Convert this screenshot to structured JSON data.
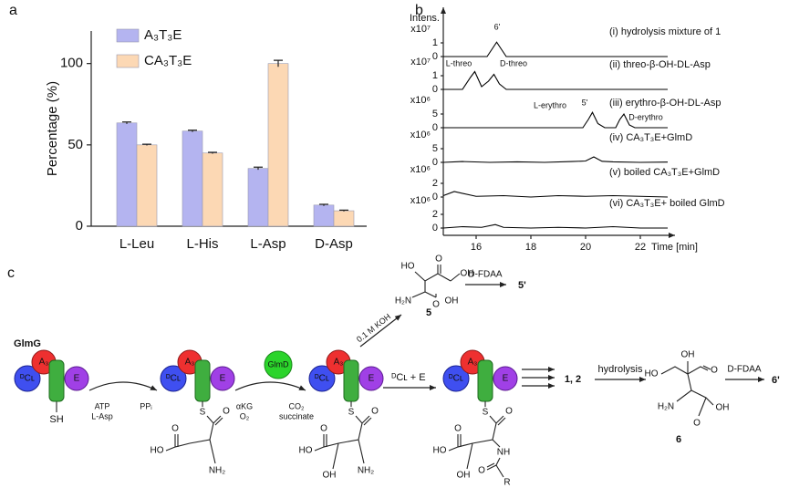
{
  "chart_data": [
    {
      "type": "bar",
      "panel_label": "a",
      "ylabel": "Percentage (%)",
      "categories": [
        "L-Leu",
        "L-His",
        "L-Asp",
        "D-Asp"
      ],
      "series": [
        {
          "name": "A₃T₃E",
          "color": "#b4b4f0",
          "values": [
            63.5,
            58.5,
            35.5,
            13
          ],
          "errors": [
            0.6,
            0.5,
            0.8,
            0.5
          ]
        },
        {
          "name": "CA₃T₃E",
          "color": "#fcd8b4",
          "values": [
            50,
            45,
            100,
            9.5
          ],
          "errors": [
            0.4,
            0.4,
            2,
            0.4
          ]
        }
      ],
      "ylim": [
        0,
        120
      ],
      "yticks": [
        0,
        50,
        100
      ]
    },
    {
      "type": "line",
      "panel_label": "b",
      "ylabel": "Intens.",
      "xlabel": "Time [min]",
      "xlim": [
        14.8,
        23
      ],
      "xticks": [
        16,
        18,
        20,
        22
      ],
      "series": [
        {
          "name": "(i) hydrolysis mixture of 1",
          "scale": "x10⁷",
          "color": "#000000",
          "ylim": [
            0,
            2
          ],
          "yticks": [
            0,
            1
          ],
          "peak_labels": [
            "6'"
          ],
          "x": [
            14.8,
            16.4,
            16.6,
            16.75,
            16.9,
            17.1,
            23
          ],
          "values": [
            0,
            0,
            0.6,
            1.05,
            0.6,
            0,
            0
          ]
        },
        {
          "name": "(ii) threo-β-OH-DL-Asp",
          "scale": "x10⁷",
          "color": "#000000",
          "ylim": [
            0,
            2
          ],
          "yticks": [
            0,
            1
          ],
          "peak_labels": [
            "L-threo",
            "D-threo"
          ],
          "x": [
            14.8,
            15.5,
            15.8,
            15.95,
            16.2,
            16.45,
            16.65,
            16.85,
            17.1,
            23
          ],
          "values": [
            0,
            0,
            0.9,
            1.3,
            0.2,
            0.6,
            1.1,
            0.4,
            0,
            0
          ]
        },
        {
          "name": "(iii) erythro-β-OH-DL-Asp",
          "scale": "x10⁶",
          "color": "#000000",
          "ylim": [
            0,
            10
          ],
          "yticks": [
            0,
            5
          ],
          "peak_labels": [
            "L-erythro",
            "5'",
            "D-erythro"
          ],
          "x": [
            14.8,
            19.9,
            20.1,
            20.25,
            20.45,
            20.7,
            21.1,
            21.25,
            21.4,
            21.6,
            21.8,
            23
          ],
          "values": [
            0,
            0,
            3,
            5.6,
            1.5,
            0,
            0,
            3,
            5,
            1,
            0,
            0
          ]
        },
        {
          "name": "(iv) CA₃T₃E+GlmD",
          "scale": "x10⁶",
          "color": "#000000",
          "ylim": [
            0,
            10
          ],
          "yticks": [
            0,
            5
          ],
          "peak_labels": [],
          "x": [
            14.8,
            15.5,
            16.5,
            17.5,
            18.5,
            19.5,
            20.0,
            20.3,
            20.6,
            21,
            22,
            23
          ],
          "values": [
            0,
            0.3,
            0,
            0.2,
            0,
            0.3,
            0.5,
            2,
            0.4,
            0.2,
            0,
            0.1
          ]
        },
        {
          "name": "(v) boiled CA₃T₃E+GlmD",
          "scale": "x10⁶",
          "color": "#000000",
          "ylim": [
            0,
            4
          ],
          "yticks": [
            0,
            2
          ],
          "peak_labels": [],
          "x": [
            14.8,
            15.2,
            16,
            17,
            18,
            19,
            20,
            21,
            22,
            23
          ],
          "values": [
            0.2,
            0.8,
            0.1,
            0.2,
            0,
            0.2,
            0.1,
            0.2,
            0.1,
            0
          ]
        },
        {
          "name": "(vi) CA₃T₃E+ boiled GlmD",
          "scale": "x10⁶",
          "color": "#000000",
          "ylim": [
            0,
            4
          ],
          "yticks": [
            0,
            2
          ],
          "peak_labels": [],
          "x": [
            14.8,
            15.5,
            16.2,
            16.7,
            17,
            18,
            19,
            20,
            21,
            22,
            23
          ],
          "values": [
            0,
            0.2,
            0.1,
            0.5,
            0.1,
            0,
            0.1,
            0,
            0.2,
            0,
            0
          ]
        }
      ]
    }
  ],
  "scheme": {
    "panel_label": "c",
    "glmg": "GlmG",
    "sh": "SH",
    "modules": [
      {
        "a": "A₃",
        "c": "ᴰCʟ",
        "e": "E"
      },
      {
        "a": "A₃",
        "c": "ᴰCʟ",
        "e": "E"
      },
      {
        "a": "A₃",
        "c": "ᴰCʟ",
        "e": "E"
      },
      {
        "a": "A₃",
        "c": "ᴰCʟ",
        "e": "E"
      }
    ],
    "atp": "ATP",
    "lasp": "L-Asp",
    "ppi": "PPᵢ",
    "glmd": "GlmD",
    "akg": "αKG",
    "o2": "O₂",
    "co2": "CO₂",
    "succinate": "succinate",
    "dcl_e": "ᴰCʟ + E",
    "koh": "0.1 M KOH",
    "cmpd5": "5",
    "fdaa1": "D-FDAA",
    "p5": "5'",
    "product12": "1, 2",
    "hydrolysis": "hydrolysis",
    "cmpd6": "6",
    "fdaa2": "D-FDAA",
    "p6": "6'",
    "bound_atoms": [
      [
        "S",
        "O",
        "HO",
        "O",
        "NH₂"
      ],
      [
        "S",
        "O",
        "HO",
        "O",
        "OH",
        "NH₂"
      ],
      [
        "S",
        "O",
        "HO",
        "O",
        "OH",
        "NH",
        "O",
        "R"
      ]
    ],
    "cmpd5_atoms": [
      "HO",
      "O",
      "OH",
      "H₂N",
      "OH",
      "O"
    ],
    "cmpd6_atoms": [
      "OH",
      "O",
      "HO",
      "H₂N",
      "OH",
      "O"
    ]
  }
}
